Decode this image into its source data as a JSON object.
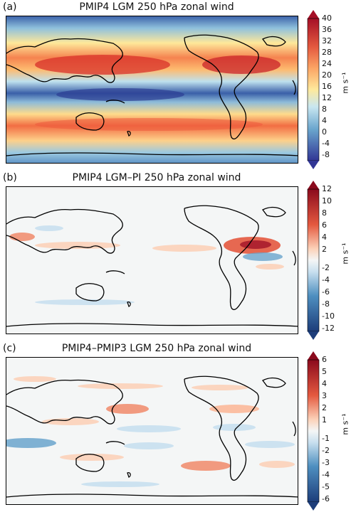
{
  "panels": [
    {
      "letter": "(a)",
      "title": "PMIP4 LGM 250 hPa zonal wind",
      "unit": "m s⁻¹",
      "colorbar_ticks": [
        "40",
        "36",
        "32",
        "28",
        "24",
        "20",
        "16",
        "12",
        "8",
        "4",
        "0",
        "-4",
        "-8"
      ],
      "colormap": "diverging-full"
    },
    {
      "letter": "(b)",
      "title": "PMIP4 LGM–PI 250 hPa zonal wind",
      "unit": "m s⁻¹",
      "colorbar_ticks": [
        "12",
        "10",
        "8",
        "6",
        "4",
        "2",
        "-2",
        "-4",
        "-6",
        "-8",
        "-10",
        "-12"
      ],
      "colormap": "diverging-anomaly"
    },
    {
      "letter": "(c)",
      "title": "PMIP4–PMIP3 LGM 250 hPa zonal wind",
      "unit": "m s⁻¹",
      "colorbar_ticks": [
        "6",
        "5",
        "4",
        "3",
        "2",
        "1",
        "-1",
        "-2",
        "-3",
        "-4",
        "-5",
        "-6"
      ],
      "colormap": "diverging-anomaly"
    }
  ],
  "colors": {
    "strong_positive": "#8b0a1d",
    "positive": "#e4593f",
    "weak_positive": "#fcd2b9",
    "neutral": "#f4f6f6",
    "weak_negative": "#c9e0ef",
    "negative": "#4e8fc0",
    "strong_negative": "#1d3d7a",
    "coast": "#000000"
  }
}
